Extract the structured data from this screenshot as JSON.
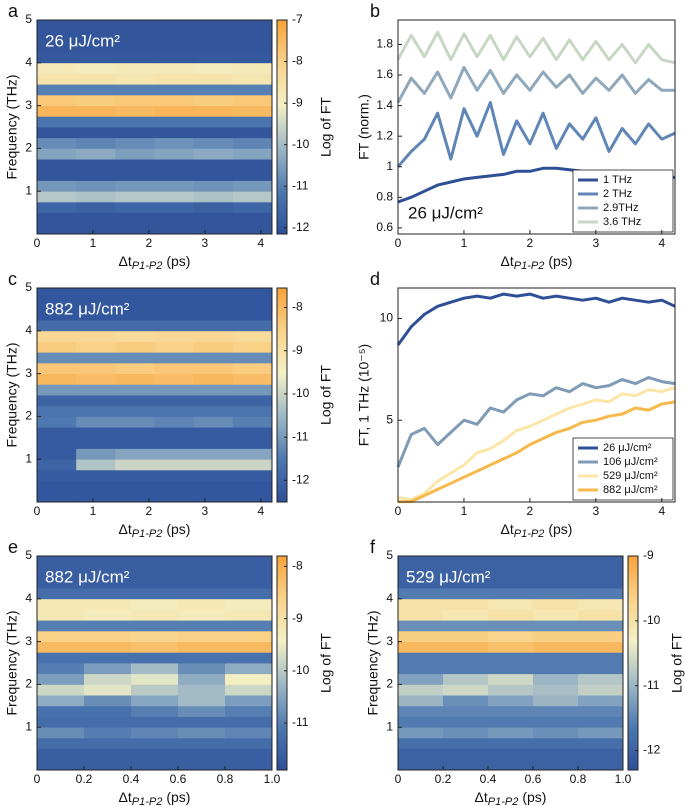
{
  "chart_data": [
    {
      "type": "heatmap",
      "panel": "a",
      "annotation": "26 μJ/cm²",
      "ylabel": "Frequency (THz)",
      "xlabel": {
        "symbol": "Δt",
        "subscript": "P1-P2",
        "unit": "(ps)"
      },
      "colorbar_label": "Log of FT",
      "colormap": [
        "#2d4f99",
        "#4d78b0",
        "#9db7c6",
        "#f3f0c6",
        "#f9d38a",
        "#f7a23a"
      ],
      "x_edges": [
        0,
        0.7,
        1.4,
        2.1,
        2.8,
        3.5,
        4.2
      ],
      "y_edges": [
        0,
        0.25,
        0.5,
        0.75,
        1,
        1.25,
        1.5,
        1.75,
        2,
        2.25,
        2.5,
        2.75,
        3,
        3.25,
        3.5,
        3.75,
        4,
        4.25,
        4.5,
        4.75,
        5
      ],
      "z": [
        [
          -12,
          -12,
          -12,
          -12,
          -12,
          -12
        ],
        [
          -12,
          -12,
          -12,
          -12,
          -12,
          -12
        ],
        [
          -11.6,
          -11.7,
          -11.6,
          -11.6,
          -11.7,
          -11.6
        ],
        [
          -9.8,
          -9.9,
          -9.8,
          -9.8,
          -9.9,
          -9.8
        ],
        [
          -10.6,
          -10.7,
          -10.6,
          -10.6,
          -10.7,
          -10.6
        ],
        [
          -12,
          -12,
          -12,
          -12,
          -12,
          -12
        ],
        [
          -12,
          -12,
          -12,
          -12,
          -12,
          -12
        ],
        [
          -10.4,
          -10.3,
          -10.5,
          -10.4,
          -10.3,
          -10.4
        ],
        [
          -10.8,
          -10.9,
          -10.8,
          -10.7,
          -10.8,
          -10.9
        ],
        [
          -12,
          -12,
          -12,
          -12,
          -12,
          -12
        ],
        [
          -11.2,
          -11.2,
          -11.2,
          -11.2,
          -11.2,
          -11.2
        ],
        [
          -7.4,
          -7.4,
          -7.5,
          -7.4,
          -7.4,
          -7.5
        ],
        [
          -7.8,
          -7.9,
          -7.8,
          -7.8,
          -7.9,
          -7.8
        ],
        [
          -11,
          -11,
          -11,
          -11,
          -11,
          -11
        ],
        [
          -8.6,
          -8.6,
          -8.7,
          -8.6,
          -8.6,
          -8.7
        ],
        [
          -8.8,
          -8.9,
          -8.8,
          -8.8,
          -8.9,
          -8.8
        ],
        [
          -11.9,
          -11.9,
          -11.9,
          -11.9,
          -11.9,
          -11.9
        ],
        [
          -12,
          -12,
          -12,
          -12,
          -12,
          -12
        ],
        [
          -12,
          -12,
          -12,
          -12,
          -12,
          -12
        ],
        [
          -12,
          -12,
          -12,
          -12,
          -12,
          -12
        ]
      ],
      "xlim": [
        0,
        4.2
      ],
      "ylim": [
        0,
        5
      ],
      "zlim": [
        -12.15,
        -7
      ],
      "xticks": [
        0,
        1,
        2,
        3,
        4
      ],
      "yticks": [
        1,
        2,
        3,
        4,
        5
      ],
      "zticks": [
        -7,
        -8,
        -9,
        -10,
        -11,
        -12
      ]
    },
    {
      "type": "line",
      "panel": "b",
      "annotation": "26 μJ/cm²",
      "ylabel": "FT (norm.)",
      "xlabel": {
        "symbol": "Δt",
        "subscript": "P1-P2",
        "unit": "(ps)"
      },
      "legend": "lower right",
      "x": [
        0,
        0.2,
        0.4,
        0.6,
        0.8,
        1,
        1.2,
        1.4,
        1.6,
        1.8,
        2,
        2.2,
        2.4,
        2.6,
        2.8,
        3,
        3.2,
        3.4,
        3.6,
        3.8,
        4,
        4.2
      ],
      "series": [
        {
          "name": "1 THz",
          "color": "#2e4f96",
          "values": [
            0.77,
            0.8,
            0.84,
            0.88,
            0.9,
            0.92,
            0.93,
            0.94,
            0.95,
            0.97,
            0.97,
            0.99,
            0.99,
            0.98,
            0.97,
            0.96,
            0.95,
            0.95,
            0.94,
            0.94,
            0.93,
            0.93
          ]
        },
        {
          "name": "2 THz",
          "color": "#5f86b6",
          "values": [
            1.0,
            1.1,
            1.18,
            1.35,
            1.05,
            1.38,
            1.2,
            1.42,
            1.08,
            1.3,
            1.15,
            1.35,
            1.12,
            1.28,
            1.18,
            1.32,
            1.1,
            1.25,
            1.15,
            1.28,
            1.18,
            1.22
          ]
        },
        {
          "name": "2.9THz",
          "color": "#8fa8bb",
          "values": [
            1.42,
            1.58,
            1.48,
            1.62,
            1.45,
            1.65,
            1.5,
            1.63,
            1.48,
            1.6,
            1.5,
            1.62,
            1.52,
            1.6,
            1.48,
            1.58,
            1.5,
            1.6,
            1.48,
            1.57,
            1.5,
            1.5
          ]
        },
        {
          "name": "3.6 THz",
          "color": "#c8d7c4",
          "values": [
            1.7,
            1.86,
            1.72,
            1.88,
            1.7,
            1.87,
            1.72,
            1.86,
            1.7,
            1.85,
            1.72,
            1.84,
            1.7,
            1.83,
            1.7,
            1.82,
            1.7,
            1.8,
            1.68,
            1.8,
            1.7,
            1.68
          ]
        }
      ],
      "xlim": [
        0,
        4.2
      ],
      "ylim": [
        0.56,
        1.96
      ],
      "xticks": [
        0,
        1,
        2,
        3,
        4
      ],
      "yticks": [
        0.6,
        0.8,
        1.0,
        1.2,
        1.4,
        1.6,
        1.8
      ]
    },
    {
      "type": "heatmap",
      "panel": "c",
      "annotation": "882 μJ/cm²",
      "ylabel": "Frequency (THz)",
      "xlabel": {
        "symbol": "Δt",
        "subscript": "P1-P2",
        "unit": "(ps)"
      },
      "colorbar_label": "Log of FT",
      "colormap": [
        "#2d4f99",
        "#4d78b0",
        "#9db7c6",
        "#f3f0c6",
        "#f9d38a",
        "#f7a23a"
      ],
      "x_edges": [
        0,
        0.7,
        1.4,
        2.1,
        2.8,
        3.5,
        4.2
      ],
      "y_edges": [
        0,
        0.25,
        0.5,
        0.75,
        1,
        1.25,
        1.5,
        1.75,
        2,
        2.25,
        2.5,
        2.75,
        3,
        3.25,
        3.5,
        3.75,
        4,
        4.25,
        4.5,
        4.75,
        5
      ],
      "z": [
        [
          -12.3,
          -12.3,
          -12.3,
          -12.3,
          -12.3,
          -12.3
        ],
        [
          -12.3,
          -12.3,
          -12.3,
          -12.3,
          -12.3,
          -12.3
        ],
        [
          -12.2,
          -12.2,
          -12.2,
          -12.2,
          -12.2,
          -12.2
        ],
        [
          -12,
          -10.3,
          -10,
          -10,
          -10,
          -10
        ],
        [
          -12.2,
          -11,
          -10.8,
          -10.8,
          -10.8,
          -10.8
        ],
        [
          -12.2,
          -12.2,
          -12.2,
          -12.2,
          -12.2,
          -12.2
        ],
        [
          -12.2,
          -12.2,
          -12.2,
          -12.2,
          -12.2,
          -12.2
        ],
        [
          -11.5,
          -11.2,
          -11.2,
          -11.3,
          -11.2,
          -11.4
        ],
        [
          -11.6,
          -11.6,
          -11.6,
          -11.6,
          -11.6,
          -11.6
        ],
        [
          -12,
          -12,
          -12,
          -12,
          -12,
          -12
        ],
        [
          -11,
          -11,
          -11,
          -11,
          -11,
          -11
        ],
        [
          -8,
          -8.1,
          -8,
          -8.1,
          -8,
          -8.1
        ],
        [
          -8.3,
          -8.3,
          -8.4,
          -8.3,
          -8.3,
          -8.4
        ],
        [
          -11.2,
          -11.2,
          -11.2,
          -11.2,
          -11.2,
          -11.2
        ],
        [
          -8.4,
          -8.5,
          -8.4,
          -8.5,
          -8.4,
          -8.5
        ],
        [
          -8.7,
          -8.7,
          -8.8,
          -8.7,
          -8.7,
          -8.8
        ],
        [
          -11.8,
          -11.8,
          -11.8,
          -11.8,
          -11.8,
          -11.8
        ],
        [
          -12.3,
          -12.3,
          -12.3,
          -12.3,
          -12.3,
          -12.3
        ],
        [
          -12.3,
          -12.3,
          -12.3,
          -12.3,
          -12.3,
          -12.3
        ],
        [
          -12.3,
          -12.3,
          -12.3,
          -12.3,
          -12.3,
          -12.3
        ]
      ],
      "xlim": [
        0,
        4.2
      ],
      "ylim": [
        0,
        5
      ],
      "zlim": [
        -12.5,
        -7.55
      ],
      "xticks": [
        0,
        1,
        2,
        3,
        4
      ],
      "yticks": [
        1,
        2,
        3,
        4,
        5
      ],
      "zticks": [
        -8,
        -9,
        -10,
        -11,
        -12
      ]
    },
    {
      "type": "line",
      "panel": "d",
      "ylabel": "FT, 1 THz (10⁻⁵)",
      "xlabel": {
        "symbol": "Δt",
        "subscript": "P1-P2",
        "unit": "(ps)"
      },
      "legend": "lower right",
      "x": [
        0,
        0.2,
        0.4,
        0.6,
        0.8,
        1,
        1.2,
        1.4,
        1.6,
        1.8,
        2,
        2.2,
        2.4,
        2.6,
        2.8,
        3,
        3.2,
        3.4,
        3.6,
        3.8,
        4,
        4.2
      ],
      "series": [
        {
          "name": "26 μJ/cm²",
          "color": "#2e4f96",
          "values": [
            8.7,
            9.6,
            10.2,
            10.6,
            10.8,
            11.0,
            11.1,
            11.0,
            11.2,
            11.1,
            11.2,
            11.0,
            11.1,
            11.0,
            10.9,
            11.0,
            10.8,
            11.0,
            10.9,
            10.8,
            10.9,
            10.6
          ]
        },
        {
          "name": "106 μJ/cm²",
          "color": "#7f9bb5",
          "values": [
            2.7,
            4.3,
            4.6,
            3.8,
            4.4,
            5.0,
            4.8,
            5.6,
            5.4,
            6.0,
            6.3,
            6.2,
            6.6,
            6.4,
            6.8,
            6.6,
            6.7,
            7.0,
            6.8,
            7.1,
            6.9,
            6.8
          ]
        },
        {
          "name": "529 μJ/cm²",
          "color": "#fbe6a8",
          "values": [
            1.2,
            1.1,
            1.4,
            2.0,
            2.4,
            2.8,
            3.4,
            3.6,
            4.0,
            4.5,
            4.7,
            5.0,
            5.3,
            5.6,
            5.8,
            6.0,
            5.9,
            6.3,
            6.2,
            6.5,
            6.4,
            6.6
          ]
        },
        {
          "name": "882 μJ/cm²",
          "color": "#f6b94c",
          "values": [
            1.0,
            1.0,
            1.3,
            1.6,
            1.9,
            2.2,
            2.5,
            2.8,
            3.1,
            3.4,
            3.8,
            4.1,
            4.4,
            4.6,
            4.9,
            5.0,
            5.2,
            5.3,
            5.6,
            5.5,
            5.8,
            5.9
          ]
        }
      ],
      "xlim": [
        0,
        4.2
      ],
      "ylim": [
        0.98,
        11.5
      ],
      "xticks": [
        0,
        1,
        2,
        3,
        4
      ],
      "yticks": [
        5,
        10
      ]
    },
    {
      "type": "heatmap",
      "panel": "e",
      "annotation": "882 μJ/cm²",
      "ylabel": "Frequency (THz)",
      "xlabel": {
        "symbol": "Δt",
        "subscript": "P1-P2",
        "unit": "(ps)"
      },
      "colorbar_label": "Log of FT",
      "colormap": [
        "#2d4f99",
        "#4d78b0",
        "#9db7c6",
        "#f3f0c6",
        "#f9d38a",
        "#f7a23a"
      ],
      "x_edges": [
        0,
        0.2,
        0.4,
        0.6,
        0.8,
        1
      ],
      "y_edges": [
        0,
        0.25,
        0.5,
        0.75,
        1,
        1.25,
        1.5,
        1.75,
        2,
        2.25,
        2.5,
        2.75,
        3,
        3.25,
        3.5,
        3.75,
        4,
        4.25,
        4.5,
        4.75,
        5
      ],
      "z": [
        [
          -11.6,
          -11.6,
          -11.6,
          -11.6,
          -11.6
        ],
        [
          -11.6,
          -11.6,
          -11.6,
          -11.6,
          -11.6
        ],
        [
          -11.3,
          -11.3,
          -11.3,
          -11.3,
          -11.3
        ],
        [
          -10.8,
          -11,
          -10.9,
          -10.8,
          -10.9
        ],
        [
          -11.3,
          -11.3,
          -11.3,
          -11.3,
          -11.3
        ],
        [
          -11.2,
          -11.2,
          -11,
          -10.8,
          -11
        ],
        [
          -10.4,
          -10.8,
          -10.5,
          -10.2,
          -10.6
        ],
        [
          -9.8,
          -9.6,
          -10,
          -10.2,
          -9.8
        ],
        [
          -10.6,
          -9.8,
          -9.6,
          -10.4,
          -9.4
        ],
        [
          -11,
          -10.6,
          -10.2,
          -10.8,
          -10.4
        ],
        [
          -11.2,
          -11.2,
          -11.2,
          -11.2,
          -11.2
        ],
        [
          -8.2,
          -8.2,
          -8.3,
          -8.2,
          -8.2
        ],
        [
          -8.6,
          -8.6,
          -8.7,
          -8.6,
          -8.6
        ],
        [
          -11,
          -11,
          -11,
          -11,
          -11
        ],
        [
          -9.2,
          -9.3,
          -9.2,
          -9.3,
          -9.2
        ],
        [
          -9.2,
          -9.2,
          -9.3,
          -9.2,
          -9.3
        ],
        [
          -11.3,
          -11.3,
          -11.3,
          -11.3,
          -11.3
        ],
        [
          -11.6,
          -11.6,
          -11.6,
          -11.6,
          -11.6
        ],
        [
          -11.6,
          -11.6,
          -11.6,
          -11.6,
          -11.6
        ],
        [
          -11.6,
          -11.6,
          -11.6,
          -11.6,
          -11.6
        ]
      ],
      "xlim": [
        0,
        1
      ],
      "ylim": [
        0,
        5
      ],
      "zlim": [
        -11.9,
        -7.8
      ],
      "xticks": [
        0,
        0.2,
        0.4,
        0.6,
        0.8,
        {
          "value": 1,
          "label": "1.0"
        }
      ],
      "yticks": [
        1,
        2,
        3,
        4,
        5
      ],
      "zticks": [
        -8,
        -9,
        -10,
        -11
      ]
    },
    {
      "type": "heatmap",
      "panel": "f",
      "annotation": "529 μJ/cm²",
      "ylabel": "Frequency (THz)",
      "xlabel": {
        "symbol": "Δt",
        "subscript": "P1-P2",
        "unit": "(ps)"
      },
      "colorbar_label": "Log of FT",
      "colormap": [
        "#2d4f99",
        "#4d78b0",
        "#9db7c6",
        "#f3f0c6",
        "#f9d38a",
        "#f7a23a"
      ],
      "x_edges": [
        0,
        0.2,
        0.4,
        0.6,
        0.8,
        1
      ],
      "y_edges": [
        0,
        0.25,
        0.5,
        0.75,
        1,
        1.25,
        1.5,
        1.75,
        2,
        2.25,
        2.5,
        2.75,
        3,
        3.25,
        3.5,
        3.75,
        4,
        4.25,
        4.5,
        4.75,
        5
      ],
      "z": [
        [
          -12,
          -12,
          -12,
          -12,
          -12
        ],
        [
          -12,
          -12,
          -12,
          -12,
          -12
        ],
        [
          -11.8,
          -11.8,
          -11.8,
          -11.8,
          -11.8
        ],
        [
          -11.3,
          -11.4,
          -11.3,
          -11.4,
          -11.3
        ],
        [
          -11.6,
          -11.6,
          -11.6,
          -11.6,
          -11.6
        ],
        [
          -11.5,
          -11.5,
          -11.5,
          -11.5,
          -11.5
        ],
        [
          -11,
          -11.4,
          -11.2,
          -11,
          -11.2
        ],
        [
          -10.7,
          -10.6,
          -10.8,
          -10.9,
          -10.7
        ],
        [
          -11.2,
          -10.8,
          -10.6,
          -11,
          -10.8
        ],
        [
          -11.6,
          -11.6,
          -11.6,
          -11.6,
          -11.6
        ],
        [
          -11.6,
          -11.6,
          -11.6,
          -11.6,
          -11.6
        ],
        [
          -9.3,
          -9.3,
          -9.4,
          -9.3,
          -9.3
        ],
        [
          -9.6,
          -9.6,
          -9.7,
          -9.6,
          -9.6
        ],
        [
          -11.4,
          -11.4,
          -11.4,
          -11.4,
          -11.4
        ],
        [
          -10,
          -10.1,
          -10,
          -10.1,
          -10
        ],
        [
          -10,
          -10,
          -10.1,
          -10,
          -10.1
        ],
        [
          -11.6,
          -11.6,
          -11.6,
          -11.6,
          -11.6
        ],
        [
          -12,
          -12,
          -12,
          -12,
          -12
        ],
        [
          -12,
          -12,
          -12,
          -12,
          -12
        ],
        [
          -12,
          -12,
          -12,
          -12,
          -12
        ]
      ],
      "xlim": [
        0,
        1
      ],
      "ylim": [
        0,
        5
      ],
      "zlim": [
        -12.3,
        -9
      ],
      "xticks": [
        0,
        0.2,
        0.4,
        0.6,
        0.8,
        {
          "value": 1,
          "label": "1.0"
        }
      ],
      "yticks": [
        1,
        2,
        3,
        4,
        5
      ],
      "zticks": [
        -9,
        -10,
        -11,
        -12
      ]
    }
  ]
}
